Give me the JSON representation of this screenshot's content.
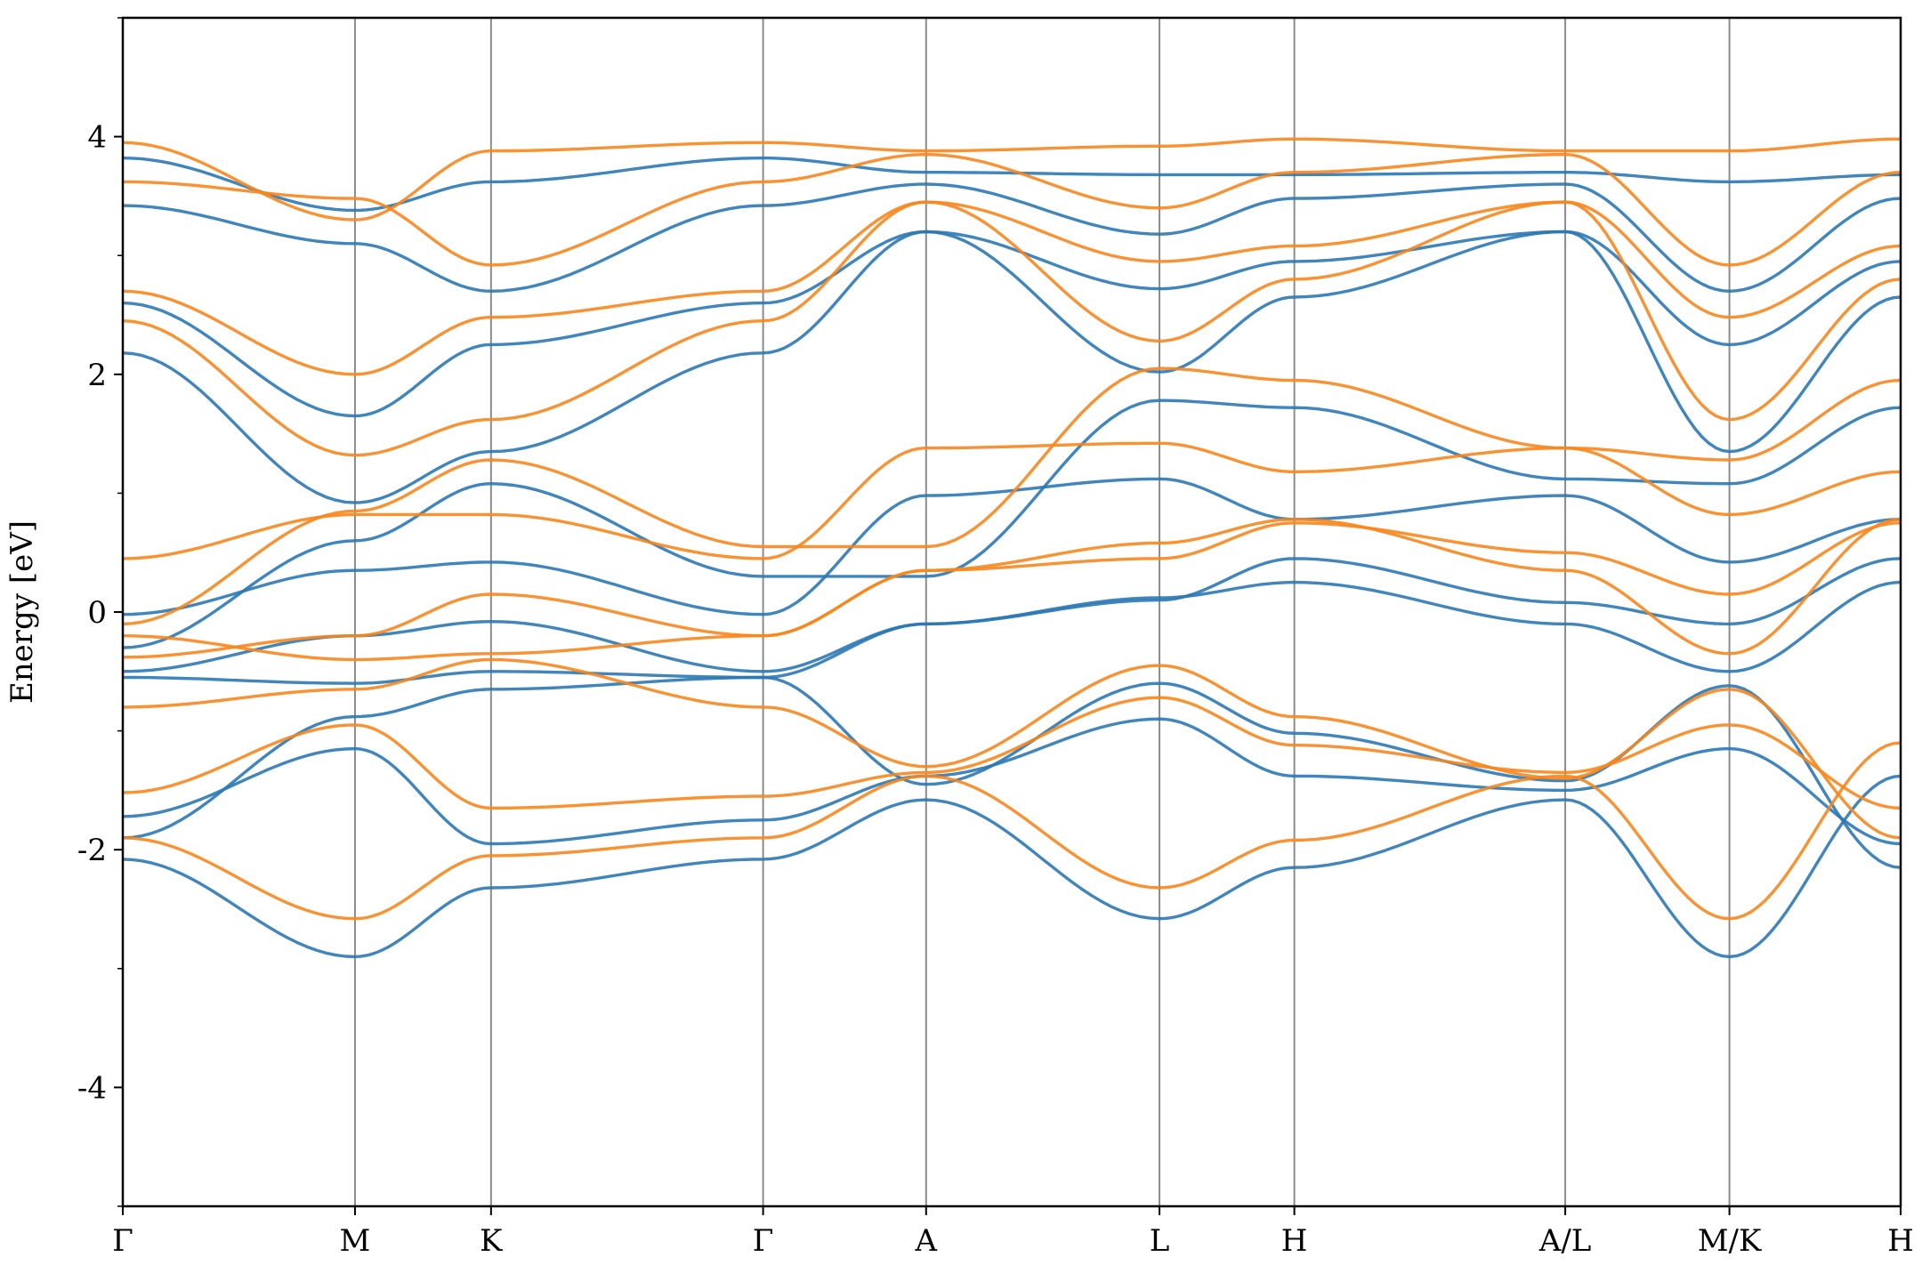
{
  "chart_data": {
    "type": "line",
    "title": "",
    "xlabel": "",
    "ylabel": "Energy [eV]",
    "ylim": [
      -5,
      5
    ],
    "y_ticks": [
      -4,
      -2,
      0,
      2,
      4
    ],
    "y_tick_labels": [
      "-4",
      "-2",
      "0",
      "2",
      "4"
    ],
    "y_minor_ticks": [
      -5,
      -3,
      -1,
      1,
      3,
      5
    ],
    "xlim": [
      0,
      15.16
    ],
    "kpoints": [
      {
        "label": "Γ",
        "x": 0.0
      },
      {
        "label": "M",
        "x": 1.98
      },
      {
        "label": "K",
        "x": 3.14
      },
      {
        "label": "Γ",
        "x": 5.46
      },
      {
        "label": "A",
        "x": 6.85
      },
      {
        "label": "L",
        "x": 8.84
      },
      {
        "label": "H",
        "x": 9.99
      },
      {
        "label": "A/L",
        "x": 12.3
      },
      {
        "label": "M/K",
        "x": 13.7
      },
      {
        "label": "H",
        "x": 15.16
      }
    ],
    "grid": "vertical lines at k-points",
    "legend": "none",
    "series_colors": {
      "blue": "#2b78b4",
      "orange": "#f7861c"
    },
    "series": [
      {
        "color": "#2b78b4",
        "x": [
          0,
          1.98,
          3.14,
          5.46,
          6.85,
          8.84,
          9.99,
          12.3,
          13.7,
          15.16
        ],
        "y": [
          -2.08,
          -2.9,
          -2.32,
          -2.08,
          -1.58,
          -2.58,
          -2.15,
          -1.58,
          -2.9,
          -1.38
        ]
      },
      {
        "color": "#2b78b4",
        "x": [
          0,
          1.98,
          3.14,
          5.46,
          6.85,
          8.84,
          9.99,
          12.3,
          13.7,
          15.16
        ],
        "y": [
          -1.72,
          -1.15,
          -1.95,
          -1.75,
          -1.38,
          -0.9,
          -1.38,
          -1.5,
          -1.15,
          -1.95
        ]
      },
      {
        "color": "#2b78b4",
        "x": [
          0,
          1.98,
          3.14,
          5.46,
          6.85,
          8.84,
          9.99,
          12.3,
          13.7,
          15.16
        ],
        "y": [
          -1.9,
          -0.88,
          -0.65,
          -0.55,
          -1.45,
          -0.6,
          -1.02,
          -1.42,
          -0.62,
          -2.15
        ]
      },
      {
        "color": "#2b78b4",
        "x": [
          0,
          1.98,
          3.14,
          5.46,
          6.85,
          8.84,
          9.99,
          12.3,
          13.7,
          15.16
        ],
        "y": [
          -0.55,
          -0.6,
          -0.5,
          -0.55,
          -0.1,
          0.12,
          0.25,
          -0.1,
          -0.5,
          0.25
        ]
      },
      {
        "color": "#2b78b4",
        "x": [
          0,
          1.98,
          3.14,
          5.46,
          6.85,
          8.84,
          9.99,
          12.3,
          13.7,
          15.16
        ],
        "y": [
          -0.5,
          -0.2,
          -0.08,
          -0.5,
          -0.1,
          0.1,
          0.45,
          0.08,
          -0.1,
          0.45
        ]
      },
      {
        "color": "#2b78b4",
        "x": [
          0,
          1.98,
          3.14,
          5.46,
          6.85,
          8.84,
          9.99,
          12.3,
          13.7,
          15.16
        ],
        "y": [
          -0.02,
          0.35,
          0.42,
          -0.02,
          0.98,
          1.12,
          0.78,
          0.98,
          0.42,
          0.78
        ]
      },
      {
        "color": "#2b78b4",
        "x": [
          0,
          1.98,
          3.14,
          5.46,
          6.85,
          8.84,
          9.99,
          12.3,
          13.7,
          15.16
        ],
        "y": [
          -0.3,
          0.6,
          1.08,
          0.3,
          0.3,
          1.78,
          1.72,
          1.12,
          1.08,
          1.72
        ]
      },
      {
        "color": "#2b78b4",
        "x": [
          0,
          1.98,
          3.14,
          5.46,
          6.85,
          8.84,
          9.99,
          12.3,
          13.7,
          15.16
        ],
        "y": [
          2.18,
          0.92,
          1.35,
          2.18,
          3.2,
          2.02,
          2.65,
          3.2,
          1.35,
          2.65
        ]
      },
      {
        "color": "#2b78b4",
        "x": [
          0,
          1.98,
          3.14,
          5.46,
          6.85,
          8.84,
          9.99,
          12.3,
          13.7,
          15.16
        ],
        "y": [
          2.6,
          1.65,
          2.25,
          2.6,
          3.2,
          2.72,
          2.95,
          3.2,
          2.25,
          2.95
        ]
      },
      {
        "color": "#2b78b4",
        "x": [
          0,
          1.98,
          3.14,
          5.46,
          6.85,
          8.84,
          9.99,
          12.3,
          13.7,
          15.16
        ],
        "y": [
          3.42,
          3.1,
          2.7,
          3.42,
          3.6,
          3.18,
          3.48,
          3.6,
          2.7,
          3.48
        ]
      },
      {
        "color": "#2b78b4",
        "x": [
          0,
          1.98,
          3.14,
          5.46,
          6.85,
          8.84,
          9.99,
          12.3,
          13.7,
          15.16
        ],
        "y": [
          3.82,
          3.38,
          3.62,
          3.82,
          3.7,
          3.68,
          3.68,
          3.7,
          3.62,
          3.68
        ]
      },
      {
        "color": "#f7861c",
        "x": [
          0,
          1.98,
          3.14,
          5.46,
          6.85,
          8.84,
          9.99,
          12.3,
          13.7,
          15.16
        ],
        "y": [
          -1.9,
          -2.58,
          -2.05,
          -1.9,
          -1.38,
          -2.32,
          -1.92,
          -1.38,
          -2.58,
          -1.1
        ]
      },
      {
        "color": "#f7861c",
        "x": [
          0,
          1.98,
          3.14,
          5.46,
          6.85,
          8.84,
          9.99,
          12.3,
          13.7,
          15.16
        ],
        "y": [
          -1.52,
          -0.95,
          -1.65,
          -1.55,
          -1.35,
          -0.72,
          -1.12,
          -1.35,
          -0.95,
          -1.65
        ]
      },
      {
        "color": "#f7861c",
        "x": [
          0,
          1.98,
          3.14,
          5.46,
          6.85,
          8.84,
          9.99,
          12.3,
          13.7,
          15.16
        ],
        "y": [
          -0.8,
          -0.65,
          -0.4,
          -0.8,
          -1.3,
          -0.45,
          -0.88,
          -1.4,
          -0.65,
          -1.9
        ]
      },
      {
        "color": "#f7861c",
        "x": [
          0,
          1.98,
          3.14,
          5.46,
          6.85,
          8.84,
          9.99,
          12.3,
          13.7,
          15.16
        ],
        "y": [
          -0.2,
          -0.4,
          -0.35,
          -0.2,
          0.35,
          0.58,
          0.78,
          0.35,
          -0.35,
          0.78
        ]
      },
      {
        "color": "#f7861c",
        "x": [
          0,
          1.98,
          3.14,
          5.46,
          6.85,
          8.84,
          9.99,
          12.3,
          13.7,
          15.16
        ],
        "y": [
          -0.38,
          -0.2,
          0.15,
          -0.2,
          0.35,
          0.45,
          0.75,
          0.5,
          0.15,
          0.75
        ]
      },
      {
        "color": "#f7861c",
        "x": [
          0,
          1.98,
          3.14,
          5.46,
          6.85,
          8.84,
          9.99,
          12.3,
          13.7,
          15.16
        ],
        "y": [
          0.45,
          0.82,
          0.82,
          0.45,
          1.38,
          1.42,
          1.18,
          1.38,
          0.82,
          1.18
        ]
      },
      {
        "color": "#f7861c",
        "x": [
          0,
          1.98,
          3.14,
          5.46,
          6.85,
          8.84,
          9.99,
          12.3,
          13.7,
          15.16
        ],
        "y": [
          -0.1,
          0.85,
          1.28,
          0.55,
          0.55,
          2.05,
          1.95,
          1.38,
          1.28,
          1.95
        ]
      },
      {
        "color": "#f7861c",
        "x": [
          0,
          1.98,
          3.14,
          5.46,
          6.85,
          8.84,
          9.99,
          12.3,
          13.7,
          15.16
        ],
        "y": [
          2.45,
          1.32,
          1.62,
          2.45,
          3.45,
          2.28,
          2.8,
          3.45,
          1.62,
          2.8
        ]
      },
      {
        "color": "#f7861c",
        "x": [
          0,
          1.98,
          3.14,
          5.46,
          6.85,
          8.84,
          9.99,
          12.3,
          13.7,
          15.16
        ],
        "y": [
          2.7,
          2.0,
          2.48,
          2.7,
          3.45,
          2.95,
          3.08,
          3.45,
          2.48,
          3.08
        ]
      },
      {
        "color": "#f7861c",
        "x": [
          0,
          1.98,
          3.14,
          5.46,
          6.85,
          8.84,
          9.99,
          12.3,
          13.7,
          15.16
        ],
        "y": [
          3.62,
          3.48,
          2.92,
          3.62,
          3.85,
          3.4,
          3.7,
          3.85,
          2.92,
          3.7
        ]
      },
      {
        "color": "#f7861c",
        "x": [
          0,
          1.98,
          3.14,
          5.46,
          6.85,
          8.84,
          9.99,
          12.3,
          13.7,
          15.16
        ],
        "y": [
          3.95,
          3.3,
          3.88,
          3.95,
          3.88,
          3.92,
          3.98,
          3.88,
          3.88,
          3.98
        ]
      }
    ]
  }
}
